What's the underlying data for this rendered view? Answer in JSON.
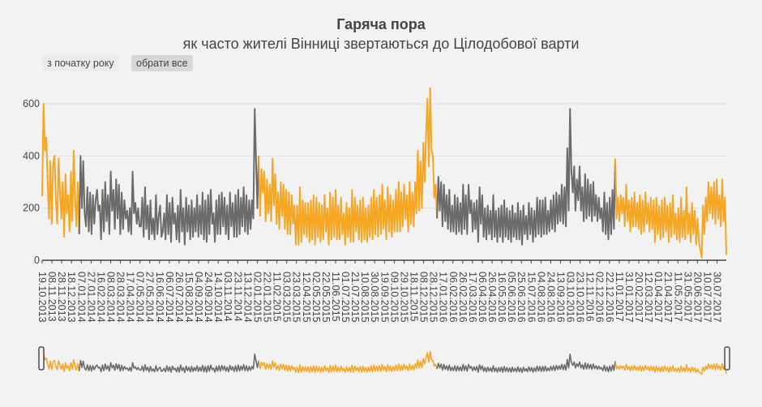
{
  "header": {
    "title": "Гаряча пора",
    "subtitle": "як часто жителі Вінниці звертаються до Цілодобової варти"
  },
  "range_selector": {
    "ytd_label": "з початку року",
    "all_label": "обрати все"
  },
  "colors": {
    "orange": "#f5a623",
    "gray": "#6b6b6b",
    "axis": "#444444",
    "grid": "#e0e0e0"
  },
  "chart_data": {
    "type": "line",
    "title": "Гаряча пора",
    "subtitle": "як часто жителі Вінниці звертаються до Цілодобової варти",
    "xlabel": "",
    "ylabel": "",
    "ylim": [
      0,
      600
    ],
    "yticks": [
      0,
      200,
      400,
      600
    ],
    "grid": true,
    "x_start": "2013-10-19",
    "x_end": "2017-08-18",
    "x_tick_labels": [
      "19.10.2013",
      "08.11.2013",
      "28.11.2013",
      "18.12.2013",
      "07.01.2014",
      "27.01.2014",
      "16.02.2014",
      "08.03.2014",
      "28.03.2014",
      "17.04.2014",
      "07.05.2014",
      "27.05.2014",
      "16.06.2014",
      "06.07.2014",
      "26.07.2014",
      "15.08.2014",
      "04.09.2014",
      "24.09.2014",
      "14.10.2014",
      "03.11.2014",
      "23.11.2014",
      "13.12.2014",
      "02.01.2015",
      "22.01.2015",
      "11.02.2015",
      "03.03.2015",
      "23.03.2015",
      "12.04.2015",
      "02.05.2015",
      "22.05.2015",
      "11.06.2015",
      "01.07.2015",
      "21.07.2015",
      "10.08.2015",
      "30.08.2015",
      "19.09.2015",
      "09.10.2015",
      "29.10.2015",
      "18.11.2015",
      "08.12.2015",
      "28.12.2015",
      "17.01.2016",
      "06.02.2016",
      "26.02.2016",
      "17.03.2016",
      "06.04.2016",
      "26.04.2016",
      "16.05.2016",
      "05.06.2016",
      "25.06.2016",
      "15.07.2016",
      "04.08.2016",
      "24.08.2016",
      "13.09.2016",
      "03.10.2016",
      "23.10.2016",
      "12.11.2016",
      "02.12.2016",
      "22.12.2016",
      "11.01.2017",
      "31.01.2017",
      "20.02.2017",
      "12.03.2017",
      "01.04.2017",
      "21.04.2017",
      "11.05.2017",
      "31.05.2017",
      "20.06.2017",
      "10.07.2017",
      "30.07.2017"
    ],
    "season_colors": [
      {
        "from": "2013-10-19",
        "to": "2013-12-31",
        "color": "orange"
      },
      {
        "from": "2014-01-01",
        "to": "2014-12-31",
        "color": "gray"
      },
      {
        "from": "2015-01-01",
        "to": "2015-12-31",
        "color": "orange"
      },
      {
        "from": "2016-01-01",
        "to": "2016-12-31",
        "color": "gray"
      },
      {
        "from": "2017-01-01",
        "to": "2017-08-18",
        "color": "orange"
      }
    ],
    "series": [
      {
        "values": [
          245,
          600,
          420,
          470,
          300,
          160,
          380,
          140,
          370,
          400,
          230,
          140,
          390,
          260,
          160,
          300,
          90,
          330,
          180,
          250,
          110,
          340,
          150,
          420,
          240,
          130,
          300,
          100,
          400,
          200,
          380,
          180,
          130,
          280,
          110,
          260,
          100,
          250,
          140,
          230,
          270,
          190,
          210,
          80,
          270,
          110,
          300,
          150,
          250,
          100,
          340,
          190,
          270,
          120,
          310,
          160,
          290,
          100,
          260,
          120,
          230,
          160,
          190,
          110,
          200,
          100,
          340,
          180,
          220,
          140,
          200,
          130,
          130,
          240,
          90,
          280,
          120,
          210,
          80,
          230,
          100,
          160,
          80,
          250,
          100,
          170,
          210,
          90,
          110,
          180,
          80,
          250,
          100,
          220,
          70,
          240,
          140,
          180,
          80,
          210,
          70,
          270,
          110,
          200,
          60,
          240,
          110,
          210,
          80,
          230,
          90,
          200,
          110,
          250,
          90,
          210,
          100,
          260,
          80,
          230,
          70,
          250,
          100,
          270,
          140,
          180,
          70,
          230,
          100,
          250,
          100,
          260,
          130,
          240,
          100,
          210,
          80,
          260,
          130,
          220,
          90,
          250,
          90,
          270,
          100,
          240,
          130,
          280,
          110,
          250,
          100,
          230,
          120,
          230,
          160,
          580,
          380,
          200,
          400,
          170,
          350,
          260,
          340,
          150,
          310,
          180,
          290,
          150,
          390,
          210,
          330,
          140,
          260,
          120,
          300,
          170,
          290,
          120,
          270,
          100,
          260,
          100,
          250,
          140,
          210,
          60,
          210,
          60,
          280,
          70,
          230,
          100,
          220,
          90,
          220,
          70,
          230,
          80,
          250,
          60,
          240,
          90,
          220,
          70,
          210,
          80,
          250,
          110,
          200,
          60,
          260,
          80,
          240,
          90,
          270,
          80,
          210,
          80,
          240,
          100,
          180,
          60,
          220,
          90,
          200,
          70,
          270,
          70,
          240,
          110,
          210,
          80,
          230,
          70,
          240,
          80,
          200,
          70,
          210,
          90,
          240,
          80,
          270,
          100,
          240,
          90,
          250,
          100,
          290,
          120,
          230,
          80,
          280,
          110,
          250,
          90,
          230,
          110,
          270,
          110,
          300,
          110,
          260,
          130,
          290,
          160,
          250,
          110,
          300,
          140,
          260,
          130,
          300,
          180,
          420,
          190,
          380,
          200,
          450,
          300,
          480,
          620,
          360,
          660,
          420,
          400,
          240,
          290,
          160,
          320,
          190,
          300,
          130,
          290,
          150,
          250,
          120,
          270,
          110,
          210,
          110,
          250,
          100,
          240,
          110,
          220,
          100,
          290,
          120,
          250,
          100,
          290,
          180,
          230,
          110,
          220,
          120,
          230,
          70,
          280,
          140,
          250,
          90,
          200,
          80,
          210,
          100,
          190,
          80,
          250,
          90,
          190,
          70,
          200,
          90,
          210,
          70,
          230,
          90,
          200,
          80,
          190,
          70,
          210,
          90,
          180,
          80,
          220,
          80,
          190,
          60,
          210,
          100,
          170,
          80,
          220,
          100,
          200,
          70,
          190,
          90,
          240,
          100,
          230,
          90,
          230,
          100,
          240,
          100,
          190,
          110,
          230,
          120,
          250,
          110,
          260,
          140,
          250,
          150,
          290,
          140,
          280,
          130,
          430,
          190,
          580,
          340,
          260,
          360,
          190,
          310,
          230,
          360,
          190,
          280,
          150,
          330,
          160,
          310,
          170,
          290,
          150,
          300,
          170,
          250,
          150,
          240,
          160,
          200,
          110,
          260,
          100,
          220,
          80,
          240,
          100,
          270,
          120,
          390,
          160,
          240,
          150,
          250,
          180,
          240,
          130,
          290,
          150,
          230,
          110,
          240,
          130,
          260,
          130,
          220,
          120,
          250,
          100,
          230,
          110,
          260,
          140,
          220,
          110,
          240,
          120,
          230,
          70,
          240,
          100,
          210,
          80,
          230,
          90,
          240,
          110,
          210,
          70,
          220,
          90,
          250,
          100,
          180,
          80,
          200,
          70,
          240,
          90,
          190,
          80,
          280,
          100,
          180,
          70,
          220,
          100,
          190,
          60,
          160,
          70,
          40,
          10,
          210,
          100,
          240,
          150,
          300,
          180,
          280,
          160,
          300,
          140,
          310,
          160,
          250,
          130,
          310,
          150,
          240,
          20
        ]
      }
    ]
  }
}
